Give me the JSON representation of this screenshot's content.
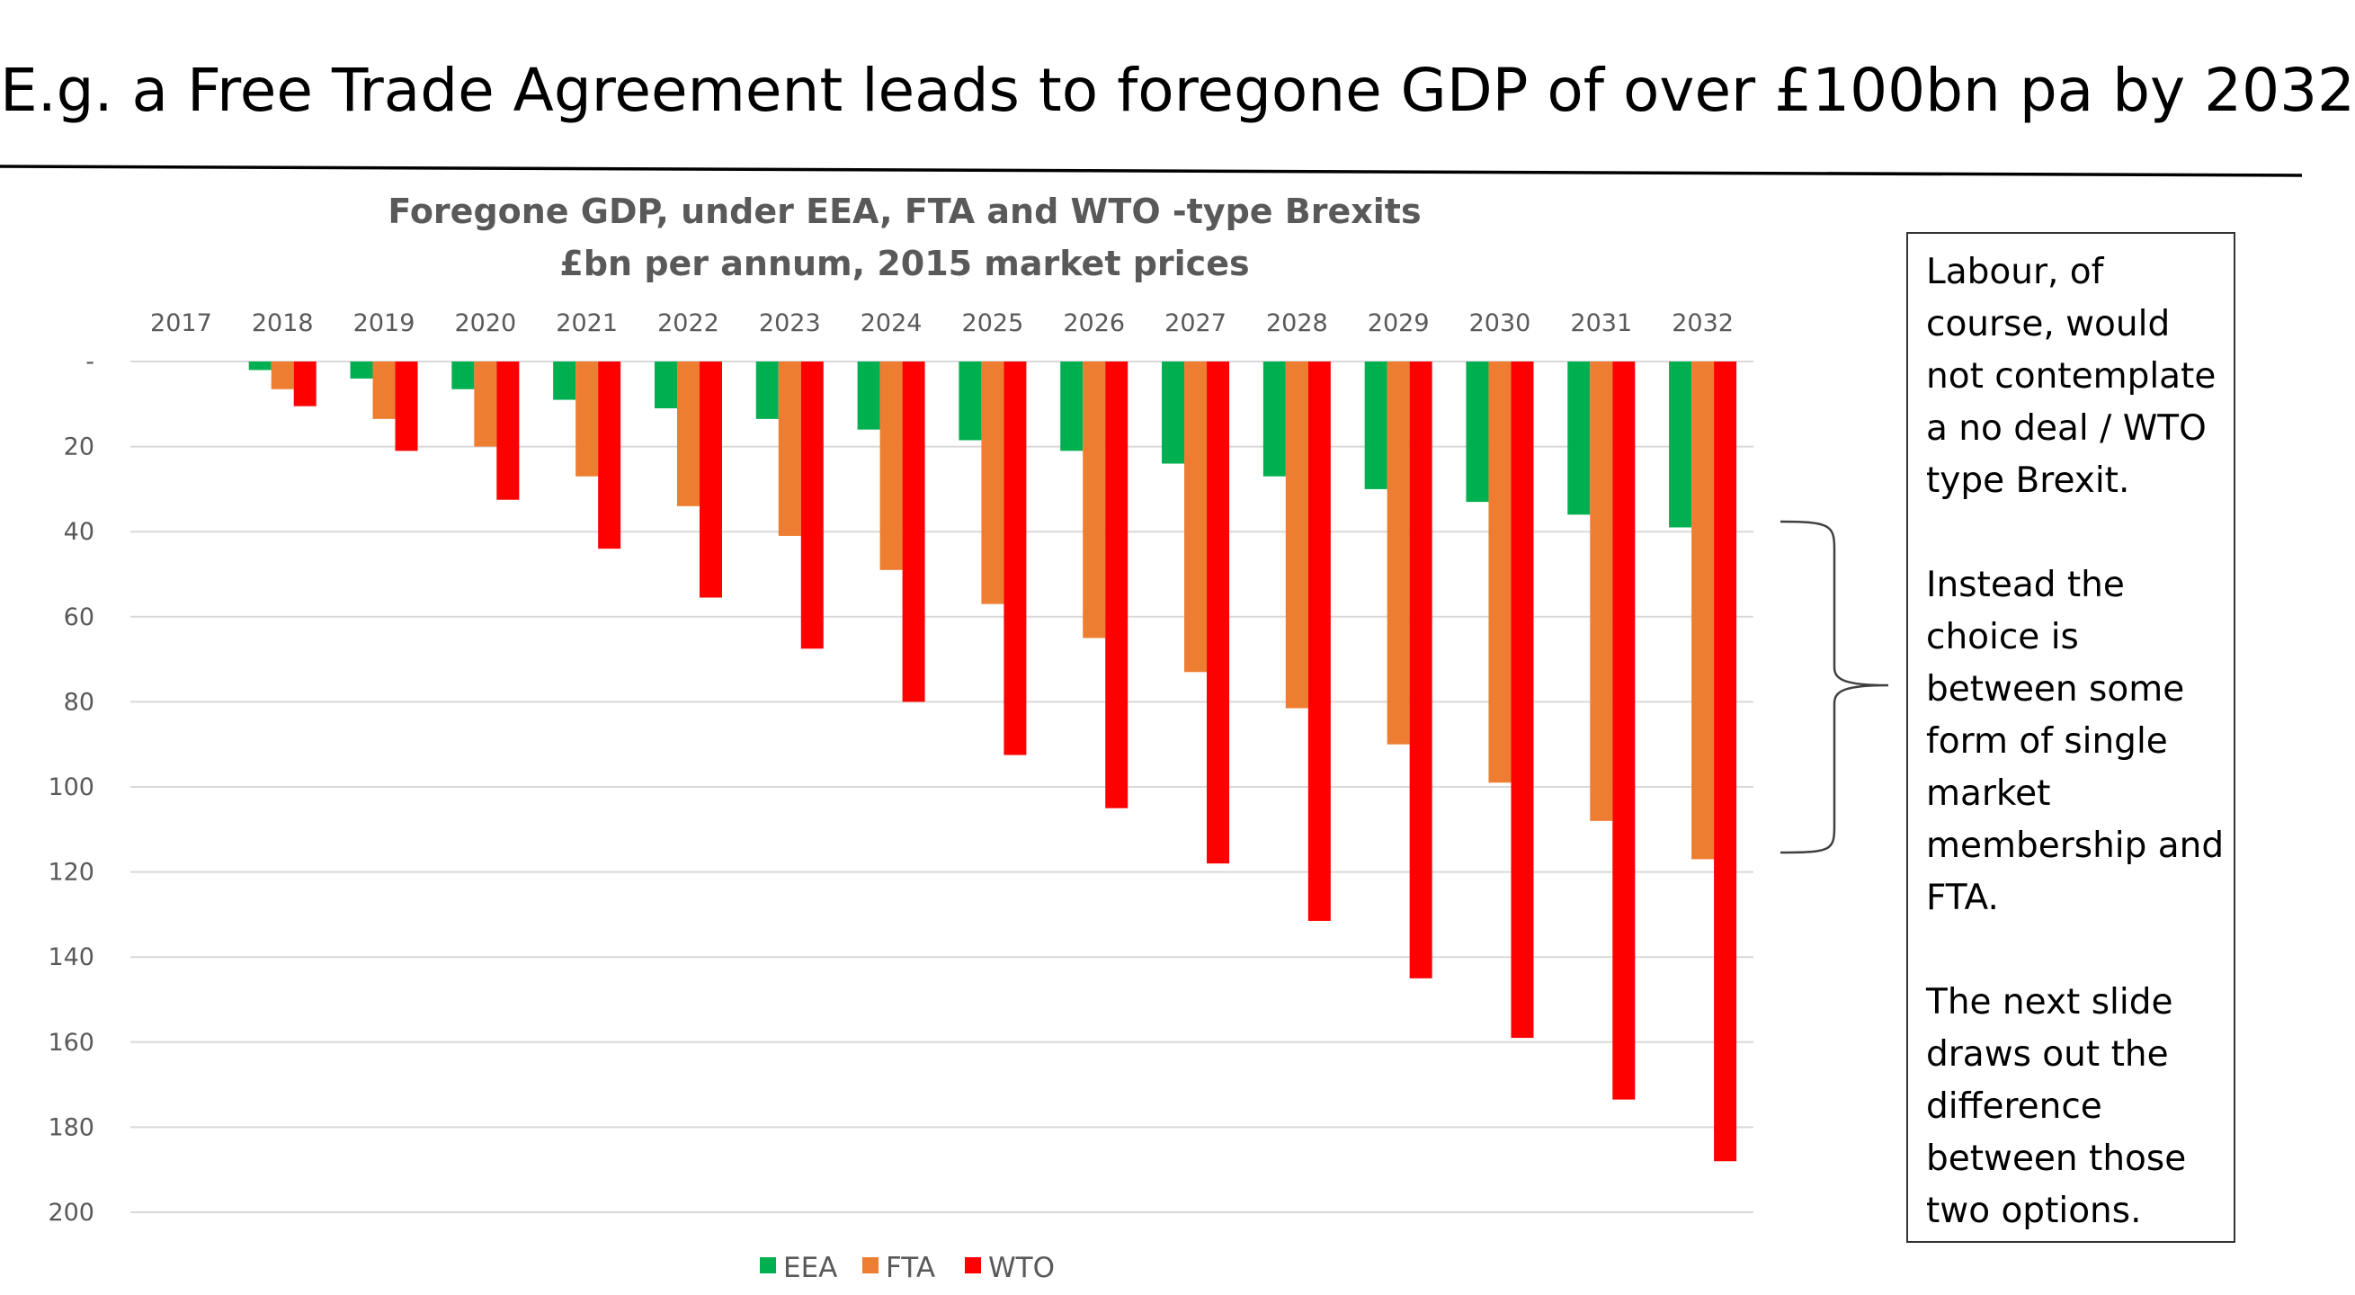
{
  "slide": {
    "title": "E.g. a Free Trade Agreement leads to foregone GDP of over £100bn pa by 2032"
  },
  "chart_data": {
    "type": "bar",
    "title": "Foregone GDP, under EEA, FTA and WTO -type Brexits",
    "subtitle": "£bn per annum, 2015 market prices",
    "categories": [
      "2017",
      "2018",
      "2019",
      "2020",
      "2021",
      "2022",
      "2023",
      "2024",
      "2025",
      "2026",
      "2027",
      "2028",
      "2029",
      "2030",
      "2031",
      "2032"
    ],
    "series": [
      {
        "name": "EEA",
        "color": "#00b050",
        "values": [
          0,
          2,
          4,
          6.5,
          9,
          11,
          13.5,
          16,
          18.5,
          21,
          24,
          27,
          30,
          33,
          36,
          39
        ]
      },
      {
        "name": "FTA",
        "color": "#ed7d31",
        "values": [
          0,
          6.5,
          13.5,
          20,
          27,
          34,
          41,
          49,
          57,
          65,
          73,
          81.5,
          90,
          99,
          108,
          117
        ]
      },
      {
        "name": "WTO",
        "color": "#ff0000",
        "values": [
          0,
          10.5,
          21,
          32.5,
          44,
          55.5,
          67.5,
          80,
          92.5,
          105,
          118,
          131.5,
          145,
          159,
          173.5,
          188
        ]
      }
    ],
    "y_tick_labels": [
      "-",
      "20",
      "40",
      "60",
      "80",
      "100",
      "120",
      "140",
      "160",
      "180",
      "200"
    ],
    "ylim": [
      0,
      200
    ],
    "y_axis_inverted": true,
    "x_axis_position": "top",
    "grid": true,
    "legend_position": "bottom"
  },
  "note": {
    "text": "Labour, of course, would not contemplate a no deal / WTO type Brexit.\n\nInstead the choice is between some form of single market membership and FTA.\n\n The next slide draws out the difference between those two options."
  }
}
